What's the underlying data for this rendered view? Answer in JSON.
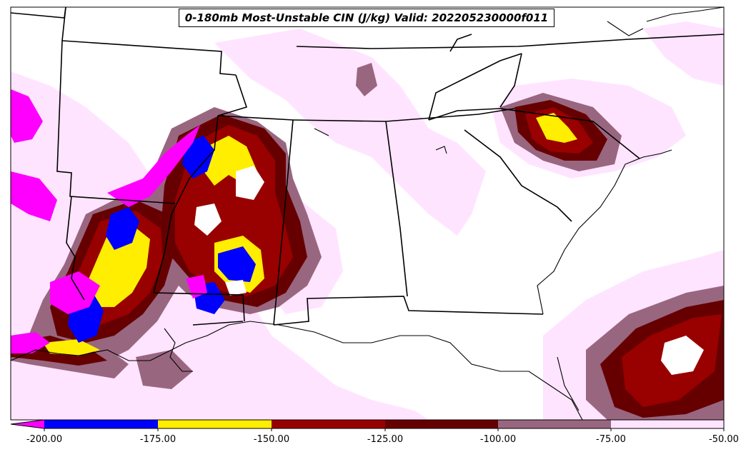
{
  "title": "0-180mb Most-Unstable CIN (J/kg) Valid: 202205230000f011",
  "colorbar": {
    "ticks": [
      "-200.00",
      "-175.00",
      "-150.00",
      "-125.00",
      "-100.00",
      "-75.00",
      "-50.00"
    ],
    "bins": [
      {
        "color": "#ff00ff"
      },
      {
        "color": "#0000ff"
      },
      {
        "color": "#ffee00"
      },
      {
        "color": "#990000"
      },
      {
        "color": "#660000"
      },
      {
        "color": "#996680"
      },
      {
        "color": "#ffe4ff"
      }
    ]
  },
  "colors": {
    "magenta": "#ff00ff",
    "blue": "#0000ff",
    "yellow": "#ffee00",
    "red": "#990000",
    "darkred": "#660000",
    "mauve": "#996680",
    "pink": "#ffe4ff",
    "border": "#000000"
  }
}
